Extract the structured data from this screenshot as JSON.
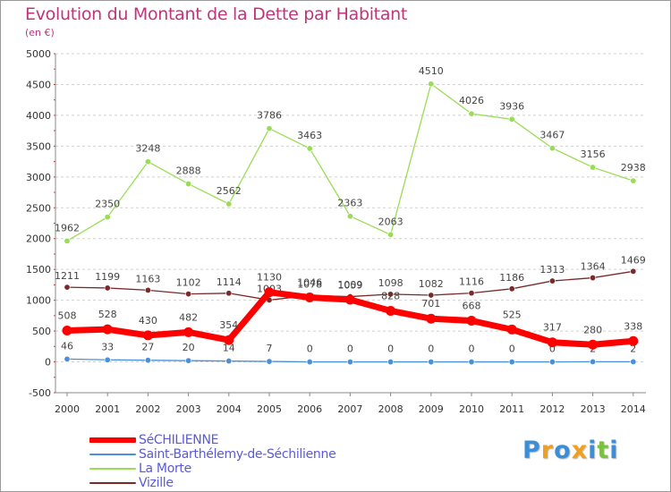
{
  "chart_data": {
    "type": "line",
    "title": "Evolution du Montant de la Dette par Habitant",
    "unit_label": "(en €)",
    "ylim": [
      -500,
      5000
    ],
    "y_ticks": [
      "5000",
      "4500",
      "4000",
      "3500",
      "3000",
      "2500",
      "2000",
      "1500",
      "1000",
      "500",
      "0",
      "-500"
    ],
    "y_tick_values": [
      5000,
      4500,
      4000,
      3500,
      3000,
      2500,
      2000,
      1500,
      1000,
      500,
      0,
      -500
    ],
    "x": [
      "2000",
      "2001",
      "2002",
      "2003",
      "2004",
      "2005",
      "2006",
      "2007",
      "2008",
      "2009",
      "2010",
      "2011",
      "2012",
      "2013",
      "2014"
    ],
    "grid": "horizontal",
    "legend_placement": "bottom-left",
    "series": [
      {
        "name": "La Morte",
        "color": "#99dd55",
        "values": [
          1962,
          2350,
          3248,
          2888,
          2562,
          3786,
          3463,
          2363,
          2063,
          4510,
          4026,
          3936,
          3467,
          3156,
          2938
        ],
        "labels": [
          "1962",
          "2350",
          "3248",
          "2888",
          "2562",
          "3786",
          "3463",
          "2363",
          "2063",
          "4510",
          "4026",
          "3936",
          "3467",
          "3156",
          "2938"
        ]
      },
      {
        "name": "Vizille",
        "color": "#7a2a2a",
        "values": [
          1211,
          1199,
          1163,
          1102,
          1114,
          1003,
          1078,
          1059,
          1098,
          1082,
          1116,
          1186,
          1313,
          1364,
          1469
        ],
        "labels": [
          "1211",
          "1199",
          "1163",
          "1102",
          "1114",
          "1003",
          "1078",
          "1059",
          "1098",
          "1082",
          "1116",
          "1186",
          "1313",
          "1364",
          "1469"
        ]
      },
      {
        "name": "Saint-Barthélemy-de-Séchilienne",
        "color": "#4a90d9",
        "values": [
          46,
          33,
          27,
          20,
          14,
          7,
          0,
          0,
          0,
          0,
          0,
          0,
          0,
          2,
          2
        ],
        "labels": [
          "46",
          "33",
          "27",
          "20",
          "14",
          "7",
          "0",
          "0",
          "0",
          "0",
          "0",
          "0",
          "0",
          "2",
          "2"
        ]
      },
      {
        "name": "SéCHILIENNE",
        "color": "#ff0000",
        "values": [
          508,
          528,
          430,
          482,
          354,
          1130,
          1046,
          1009,
          828,
          701,
          668,
          525,
          317,
          280,
          338
        ],
        "labels": [
          "508",
          "528",
          "430",
          "482",
          "354",
          "1130",
          "1046",
          "1009",
          "828",
          "701",
          "668",
          "525",
          "317",
          "280",
          "338"
        ]
      }
    ]
  },
  "legend": [
    {
      "label": "SéCHILIENNE",
      "color": "#ff0000"
    },
    {
      "label": "Saint-Barthélemy-de-Séchilienne",
      "color": "#4a90d9"
    },
    {
      "label": "La Morte",
      "color": "#99dd55"
    },
    {
      "label": "Vizille",
      "color": "#7a2a2a"
    }
  ],
  "logo": {
    "text": "Proxiti",
    "letters": [
      "P",
      "r",
      "o",
      "x",
      "i",
      "t",
      "i"
    ],
    "colors": [
      "#3a8fd8",
      "#f0a020",
      "#3a8fd8",
      "#f0a020",
      "#3a8fd8",
      "#7cc040",
      "#3a8fd8"
    ]
  }
}
